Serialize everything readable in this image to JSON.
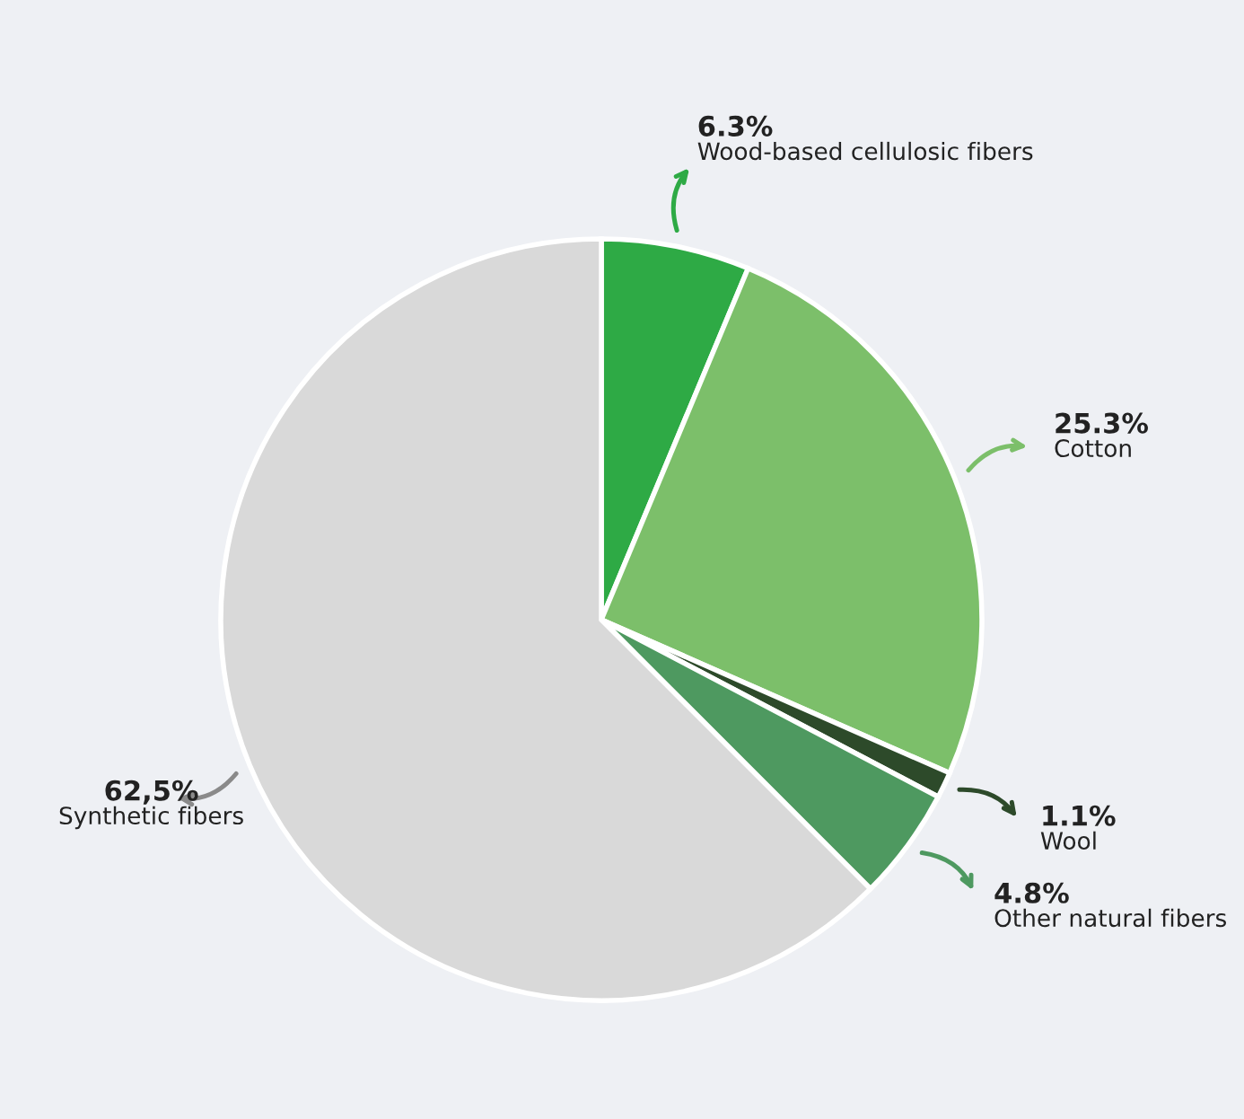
{
  "chart_data": {
    "type": "pie",
    "categories": [
      "Wood-based cellulosic fibers",
      "Cotton",
      "Wool",
      "Other natural fibers",
      "Synthetic fibers"
    ],
    "values": [
      6.3,
      25.3,
      1.1,
      4.8,
      62.5
    ],
    "value_labels": [
      "6.3%",
      "25.3%",
      "1.1%",
      "4.8%",
      "62,5%"
    ],
    "colors": [
      "#2eaa45",
      "#7cbf6a",
      "#2d4a2a",
      "#4e9960",
      "#d9d9d9"
    ]
  }
}
